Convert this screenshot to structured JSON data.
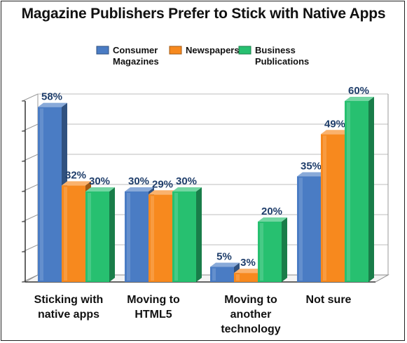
{
  "chart_data": {
    "type": "bar",
    "title": "Magazine Publishers Prefer to Stick with Native Apps",
    "categories": [
      [
        "Sticking with",
        "native apps"
      ],
      [
        "Moving to",
        "HTML5"
      ],
      [
        "Moving to",
        "another",
        "technology"
      ],
      [
        "Not sure"
      ]
    ],
    "series": [
      {
        "name": [
          "Consumer",
          "Magazines"
        ],
        "color": "#4a7cc4",
        "values": [
          58,
          30,
          5,
          35
        ],
        "labels": [
          "58%",
          "30%",
          "5%",
          "35%"
        ]
      },
      {
        "name": [
          "Newspapers"
        ],
        "color": "#f7891e",
        "values": [
          32,
          29,
          3,
          49
        ],
        "labels": [
          "32%",
          "29%",
          "3%",
          "49%"
        ]
      },
      {
        "name": [
          "Business",
          "Publications"
        ],
        "color": "#27c070",
        "values": [
          30,
          30,
          20,
          60
        ],
        "labels": [
          "30%",
          "30%",
          "20%",
          "60%"
        ]
      }
    ],
    "ylim": [
      0,
      60
    ],
    "legend_position": "top",
    "grid": true
  }
}
